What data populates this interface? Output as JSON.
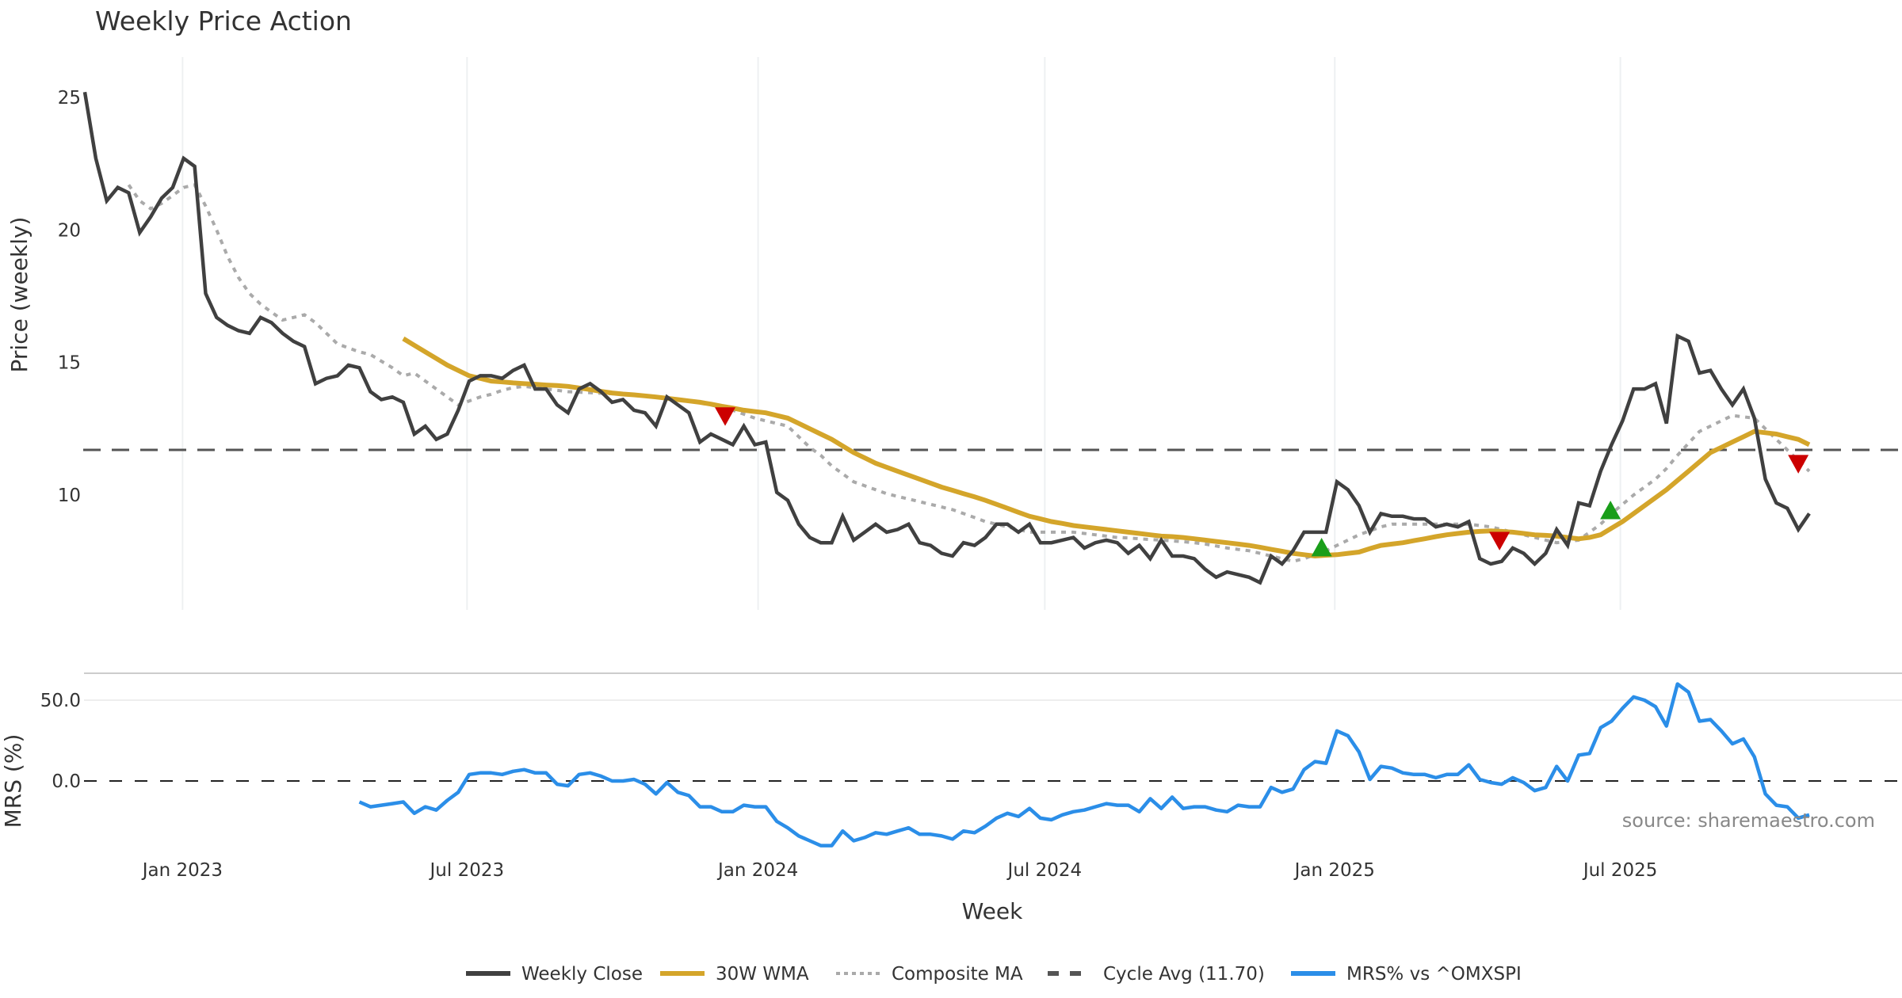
{
  "chart_data": [
    {
      "type": "line",
      "title": "Weekly Price Action",
      "xlabel": "Week",
      "ylabel": "Price (weekly)",
      "ylim": [
        6.0,
        25.4
      ],
      "yticks": [
        "25",
        "20",
        "15",
        "10"
      ],
      "ytick_values": [
        25,
        20,
        15,
        10
      ],
      "x_tick_labels": [
        "Jan 2023",
        "Jul 2023",
        "Jan 2024",
        "Jul 2024",
        "Jan 2025",
        "Jul 2025"
      ],
      "x_tick_week_index": [
        8.9,
        34.8,
        61.3,
        87.4,
        113.8,
        139.8
      ],
      "grid": "vertical",
      "series": [
        {
          "name": "Weekly Close",
          "color": "#404040",
          "start_index": 0,
          "values": [
            25.2,
            22.7,
            21.1,
            21.6,
            21.4,
            19.9,
            20.5,
            21.2,
            21.6,
            22.7,
            22.4,
            17.6,
            16.7,
            16.4,
            16.2,
            16.1,
            16.7,
            16.5,
            16.1,
            15.8,
            15.6,
            14.2,
            14.4,
            14.5,
            14.9,
            14.8,
            13.9,
            13.6,
            13.7,
            13.5,
            12.3,
            12.6,
            12.1,
            12.3,
            13.2,
            14.3,
            14.5,
            14.5,
            14.4,
            14.7,
            14.9,
            14.0,
            14.0,
            13.4,
            13.1,
            14.0,
            14.2,
            13.9,
            13.5,
            13.6,
            13.2,
            13.1,
            12.6,
            13.7,
            13.4,
            13.1,
            12.0,
            12.3,
            12.1,
            11.9,
            12.6,
            11.9,
            12.0,
            10.1,
            9.8,
            8.9,
            8.4,
            8.2,
            8.2,
            9.2,
            8.3,
            8.6,
            8.9,
            8.6,
            8.7,
            8.9,
            8.2,
            8.1,
            7.8,
            7.7,
            8.2,
            8.1,
            8.4,
            8.9,
            8.9,
            8.6,
            8.9,
            8.2,
            8.2,
            8.3,
            8.4,
            8.0,
            8.2,
            8.3,
            8.2,
            7.8,
            8.1,
            7.6,
            8.3,
            7.7,
            7.7,
            7.6,
            7.2,
            6.9,
            7.1,
            7.0,
            6.9,
            6.7,
            7.7,
            7.4,
            7.9,
            8.6,
            8.6,
            8.6,
            10.5,
            10.2,
            9.6,
            8.6,
            9.3,
            9.2,
            9.2,
            9.1,
            9.1,
            8.8,
            8.9,
            8.8,
            9.0,
            7.6,
            7.4,
            7.5,
            8.0,
            7.8,
            7.4,
            7.8,
            8.7,
            8.1,
            9.7,
            9.6,
            10.9,
            11.9,
            12.8,
            14.0,
            14.0,
            14.2,
            12.7,
            16.0,
            15.8,
            14.6,
            14.7,
            14.0,
            13.4,
            14.0,
            12.9,
            10.6,
            9.7,
            9.5,
            8.7,
            9.3
          ]
        },
        {
          "name": "30W WMA",
          "color": "#D4A52A",
          "start_index": 29,
          "values": [
            15.9,
            15.65,
            15.4,
            15.15,
            14.9,
            14.7,
            14.5,
            14.4,
            14.3,
            14.27,
            14.23,
            14.2,
            14.18,
            14.15,
            14.13,
            14.1,
            14.04,
            13.98,
            13.91,
            13.85,
            13.81,
            13.78,
            13.74,
            13.7,
            13.65,
            13.6,
            13.55,
            13.5,
            13.43,
            13.35,
            13.28,
            13.2,
            13.15,
            13.1,
            13.0,
            12.9,
            12.7,
            12.5,
            12.3,
            12.1,
            11.85,
            11.6,
            11.4,
            11.2,
            11.05,
            10.9,
            10.75,
            10.6,
            10.45,
            10.3,
            10.18,
            10.05,
            9.93,
            9.8,
            9.65,
            9.5,
            9.35,
            9.2,
            9.1,
            9.0,
            8.93,
            8.85,
            8.8,
            8.75,
            8.7,
            8.65,
            8.6,
            8.55,
            8.5,
            8.45,
            8.43,
            8.4,
            8.35,
            8.3,
            8.25,
            8.2,
            8.15,
            8.1,
            8.03,
            7.95,
            7.88,
            7.8,
            7.75,
            7.7,
            7.73,
            7.75,
            7.8,
            7.85,
            7.98,
            8.1,
            8.15,
            8.2,
            8.28,
            8.35,
            8.43,
            8.5,
            8.55,
            8.6,
            8.63,
            8.65,
            8.63,
            8.6,
            8.55,
            8.5,
            8.48,
            8.45,
            8.4,
            8.35,
            8.4,
            8.5,
            8.75,
            9.0,
            9.3,
            9.6,
            9.9,
            10.2,
            10.55,
            10.9,
            11.25,
            11.6,
            11.8,
            12.0,
            12.2,
            12.4,
            12.35,
            12.3,
            12.2,
            12.1,
            11.9
          ]
        },
        {
          "name": "Composite MA",
          "color": "#AAAAAA",
          "start_index": 4,
          "values": [
            21.7,
            21.1,
            20.8,
            21.0,
            21.3,
            21.6,
            21.7,
            20.9,
            20.0,
            19.0,
            18.2,
            17.6,
            17.2,
            16.9,
            16.6,
            16.7,
            16.8,
            16.5,
            16.1,
            15.7,
            15.55,
            15.4,
            15.3,
            15.05,
            14.8,
            14.5,
            14.6,
            14.3,
            14.0,
            13.7,
            13.4,
            13.55,
            13.7,
            13.8,
            13.95,
            14.05,
            14.1,
            14.05,
            14.0,
            13.95,
            13.9,
            13.88,
            13.86,
            13.84,
            13.82,
            13.8,
            13.8,
            13.75,
            13.7,
            13.65,
            13.6,
            13.55,
            13.5,
            13.4,
            13.3,
            13.2,
            13.05,
            12.9,
            12.8,
            12.7,
            12.6,
            12.2,
            11.8,
            11.5,
            11.1,
            10.8,
            10.5,
            10.35,
            10.2,
            10.05,
            9.95,
            9.85,
            9.75,
            9.65,
            9.55,
            9.45,
            9.3,
            9.15,
            9.0,
            8.9,
            8.8,
            8.7,
            8.6,
            8.6,
            8.6,
            8.6,
            8.6,
            8.55,
            8.5,
            8.45,
            8.4,
            8.38,
            8.35,
            8.32,
            8.3,
            8.27,
            8.24,
            8.2,
            8.15,
            8.08,
            8.0,
            7.95,
            7.9,
            7.8,
            7.7,
            7.6,
            7.5,
            7.6,
            7.75,
            7.9,
            8.1,
            8.3,
            8.5,
            8.65,
            8.8,
            8.9,
            8.9,
            8.9,
            8.9,
            8.9,
            8.9,
            8.9,
            8.9,
            8.85,
            8.8,
            8.7,
            8.6,
            8.5,
            8.4,
            8.3,
            8.2,
            8.25,
            8.3,
            8.6,
            8.9,
            9.3,
            9.65,
            10.0,
            10.3,
            10.6,
            11.0,
            11.5,
            11.95,
            12.4,
            12.6,
            12.8,
            13.0,
            12.95,
            12.9,
            12.5,
            12.1,
            11.7,
            11.3,
            10.9
          ]
        },
        {
          "name": "Cycle Avg (11.70)",
          "color": "#555555",
          "constant": 11.7
        }
      ],
      "signals": [
        {
          "type": "sell",
          "week_index": 58.3,
          "value": 13.0,
          "color": "#CC0000"
        },
        {
          "type": "buy",
          "week_index": 112.6,
          "value": 8.0,
          "color": "#1A9E1A"
        },
        {
          "type": "sell",
          "week_index": 128.8,
          "value": 8.3,
          "color": "#CC0000"
        },
        {
          "type": "buy",
          "week_index": 138.9,
          "value": 9.4,
          "color": "#1A9E1A"
        },
        {
          "type": "sell",
          "week_index": 156.0,
          "value": 11.2,
          "color": "#CC0000"
        }
      ]
    },
    {
      "type": "line",
      "ylabel": "MRS (%)",
      "ylim": [
        -45,
        65
      ],
      "yticks": [
        "50.0",
        "0.0"
      ],
      "ytick_values": [
        50,
        0
      ],
      "series": [
        {
          "name": "MRS% vs ^OMXSPI",
          "color": "#2B8EE8",
          "start_index": 25,
          "values": [
            -13,
            -16,
            -15,
            -14,
            -13,
            -20,
            -16,
            -18,
            -12,
            -7,
            4,
            5,
            5,
            4,
            6,
            7,
            5,
            5,
            -2,
            -3,
            4,
            5,
            3,
            0,
            0,
            1,
            -2,
            -8,
            -1,
            -7,
            -9,
            -16,
            -16,
            -19,
            -19,
            -15,
            -16,
            -16,
            -25,
            -29,
            -34,
            -37,
            -40,
            -40,
            -31,
            -37,
            -35,
            -32,
            -33,
            -31,
            -29,
            -33,
            -33,
            -34,
            -36,
            -31,
            -32,
            -28,
            -23,
            -20,
            -22,
            -17,
            -23,
            -24,
            -21,
            -19,
            -18,
            -16,
            -14,
            -15,
            -15,
            -19,
            -11,
            -17,
            -10,
            -17,
            -16,
            -16,
            -18,
            -19,
            -15,
            -16,
            -16,
            -4,
            -7,
            -5,
            7,
            12,
            11,
            31,
            28,
            18,
            1,
            9,
            8,
            5,
            4,
            4,
            2,
            4,
            4,
            10,
            1,
            -1,
            -2,
            2,
            -1,
            -6,
            -4,
            9,
            0,
            16,
            17,
            33,
            37,
            45,
            52,
            50,
            46,
            34,
            60,
            55,
            37,
            38,
            31,
            23,
            26,
            15,
            -8,
            -15,
            -16,
            -23,
            -21
          ]
        }
      ],
      "zero_line": 0
    }
  ],
  "legend": {
    "placement": "bottom-center",
    "items": [
      {
        "label": "Weekly Close",
        "style": "solid",
        "color": "#404040"
      },
      {
        "label": "30W WMA",
        "style": "solid",
        "color": "#D4A52A"
      },
      {
        "label": "Composite MA",
        "style": "dotted",
        "color": "#AAAAAA"
      },
      {
        "label": "Cycle Avg (11.70)",
        "style": "dashed",
        "color": "#555555"
      },
      {
        "label": "MRS% vs ^OMXSPI",
        "style": "solid",
        "color": "#2B8EE8"
      }
    ]
  },
  "source_note": "source: sharemaestro.com"
}
